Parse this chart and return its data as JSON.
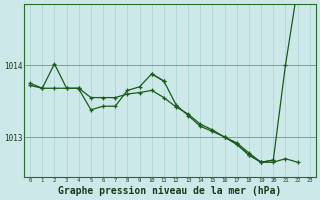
{
  "background_color": "#cce8e8",
  "plot_bg_color": "#cce8e8",
  "grid_color_v": "#b0d4d4",
  "grid_color_h": "#aaaaaa",
  "line_color": "#1a5c1a",
  "xlabel": "Graphe pression niveau de la mer (hPa)",
  "xlabel_fontsize": 7,
  "yticks": [
    1013,
    1014
  ],
  "xticks": [
    0,
    1,
    2,
    3,
    4,
    5,
    6,
    7,
    8,
    9,
    10,
    11,
    12,
    13,
    14,
    15,
    16,
    17,
    18,
    19,
    20,
    21,
    22,
    23
  ],
  "ylim": [
    1012.45,
    1014.85
  ],
  "xlim": [
    -0.5,
    23.5
  ],
  "series_long": [
    1013.72,
    1013.68,
    1013.68,
    1013.68,
    1013.68,
    1013.55,
    1013.55,
    1013.55,
    1013.6,
    1013.62,
    1013.65,
    1013.55,
    1013.42,
    1013.32,
    1013.18,
    1013.1,
    1013.0,
    1012.92,
    1012.78,
    1012.65,
    1012.65,
    1012.7,
    1012.65,
    null
  ],
  "series_short_upper": [
    1013.75,
    1013.68,
    1014.02,
    1013.68,
    1013.68,
    null,
    null,
    null,
    null,
    null,
    null,
    null,
    null,
    null,
    null,
    null,
    null,
    null,
    null,
    null,
    null,
    null,
    null,
    null
  ],
  "series_lower_dip": [
    null,
    null,
    null,
    null,
    1013.67,
    1013.38,
    1013.43,
    1013.43,
    1013.65,
    1013.7,
    1013.88,
    1013.78,
    null,
    null,
    null,
    null,
    null,
    null,
    null,
    null,
    null,
    null,
    null,
    null
  ],
  "series_end": [
    null,
    null,
    null,
    null,
    null,
    null,
    null,
    null,
    null,
    null,
    null,
    null,
    null,
    null,
    null,
    null,
    1013.0,
    1012.9,
    1012.75,
    1012.65,
    1012.68,
    1014.0,
    1015.08,
    null
  ],
  "series_mid": [
    null,
    null,
    null,
    null,
    null,
    null,
    null,
    null,
    null,
    null,
    1013.88,
    1013.78,
    1013.45,
    1013.3,
    1013.15,
    1013.08,
    1013.0,
    1012.9,
    1012.75,
    1012.65,
    1012.68,
    null,
    null,
    null
  ]
}
